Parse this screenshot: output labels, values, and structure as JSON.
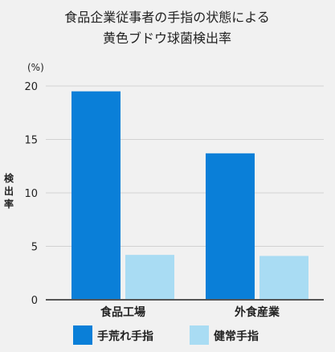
{
  "colors": {
    "background": "#f1f1f1",
    "grid": "#d2d2d2",
    "axis": "#555555",
    "text": "#222222"
  },
  "chart_data": {
    "type": "bar",
    "title_lines": [
      "食品企業従事者の手指の状態による",
      "黄色ブドウ球菌検出率"
    ],
    "unit_label": "(%)",
    "ylabel": "検出率",
    "xlabel": "",
    "categories": [
      "食品工場",
      "外食産業"
    ],
    "series": [
      {
        "name": "手荒れ手指",
        "color": "#0a7fd8",
        "values": [
          19.5,
          13.7
        ]
      },
      {
        "name": "健常手指",
        "color": "#a9dcf3",
        "values": [
          4.2,
          4.1
        ]
      }
    ],
    "ylim": [
      0,
      20
    ],
    "yticks": [
      0,
      5,
      10,
      15,
      20
    ],
    "grid": true,
    "legend_position": "bottom"
  }
}
